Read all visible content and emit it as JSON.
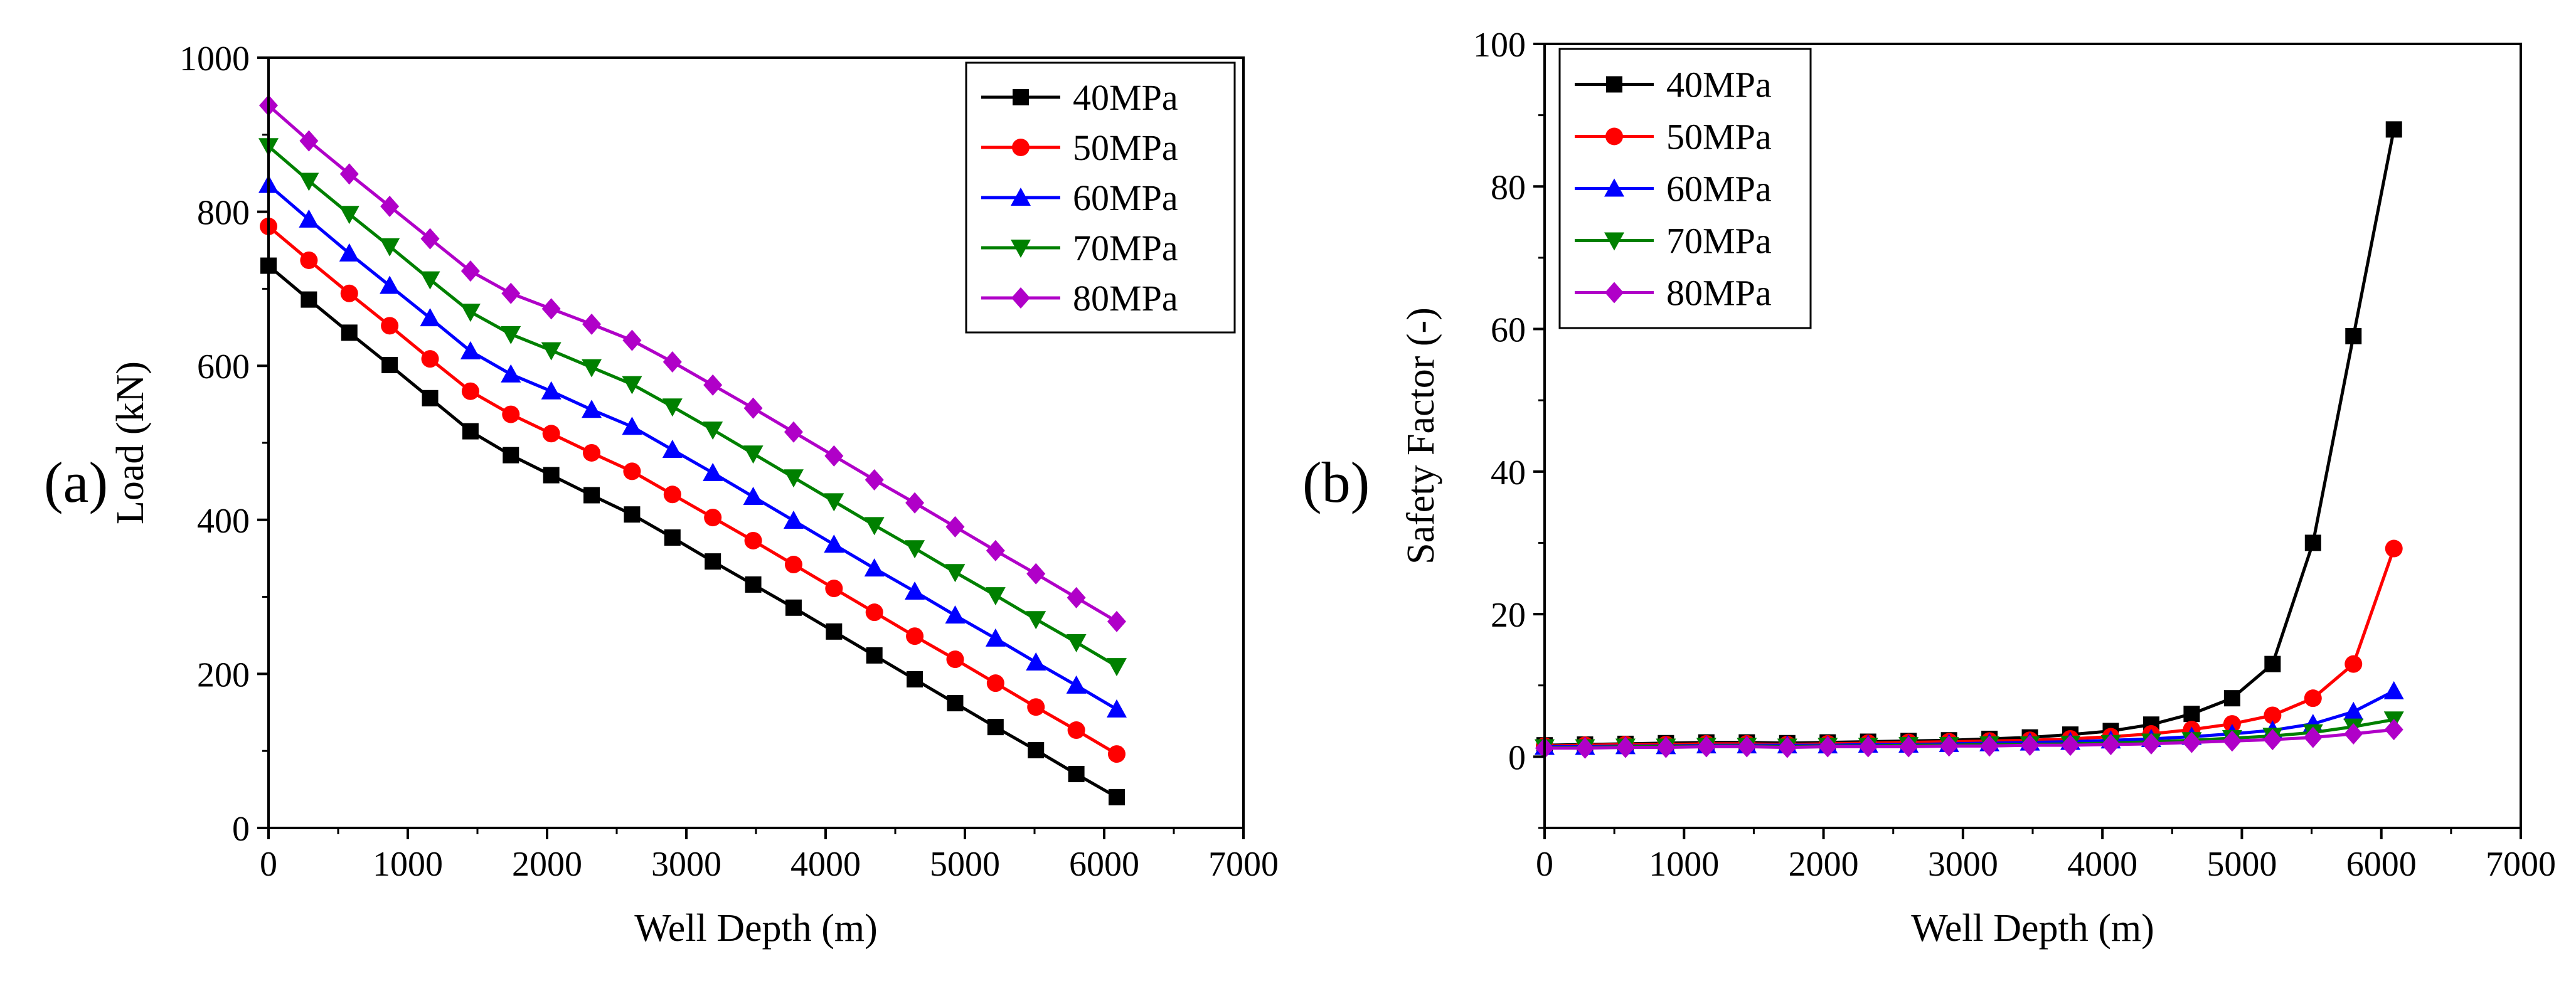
{
  "figure": {
    "panels": [
      {
        "panel_label": "(a)",
        "chart_data": {
          "type": "line",
          "xlabel": "Well Depth (m)",
          "ylabel": "Load (kN)",
          "xlim": [
            0,
            7000
          ],
          "ylim": [
            0,
            1000
          ],
          "xticks": [
            0,
            1000,
            2000,
            3000,
            4000,
            5000,
            6000,
            7000
          ],
          "yticks": [
            0,
            200,
            400,
            600,
            800,
            1000
          ],
          "legend_position": "top-right",
          "x": [
            0,
            290,
            580,
            870,
            1160,
            1450,
            1740,
            2030,
            2320,
            2610,
            2900,
            3190,
            3480,
            3770,
            4060,
            4350,
            4640,
            4930,
            5220,
            5510,
            5800,
            6090
          ],
          "series": [
            {
              "name": "40MPa",
              "color": "#000000",
              "marker": "square",
              "values": [
                730,
                686,
                643,
                601,
                558,
                515,
                484,
                458,
                432,
                407,
                377,
                346,
                316,
                286,
                255,
                224,
                193,
                162,
                131,
                101,
                70,
                40
              ]
            },
            {
              "name": "50MPa",
              "color": "#ff0000",
              "marker": "circle",
              "values": [
                781,
                737,
                694,
                652,
                609,
                567,
                537,
                512,
                487,
                463,
                433,
                403,
                373,
                342,
                311,
                280,
                249,
                219,
                188,
                157,
                127,
                96
              ]
            },
            {
              "name": "60MPa",
              "color": "#0000ff",
              "marker": "triangle-up",
              "values": [
                835,
                790,
                746,
                704,
                662,
                619,
                589,
                567,
                543,
                521,
                491,
                461,
                430,
                399,
                368,
                337,
                307,
                276,
                246,
                215,
                185,
                154
              ]
            },
            {
              "name": "70MPa",
              "color": "#008000",
              "marker": "triangle-down",
              "values": [
                885,
                840,
                797,
                755,
                712,
                670,
                641,
                620,
                598,
                576,
                547,
                517,
                486,
                455,
                424,
                393,
                363,
                332,
                302,
                271,
                241,
                210
              ]
            },
            {
              "name": "80MPa",
              "color": "#b000c8",
              "marker": "diamond",
              "values": [
                938,
                892,
                849,
                807,
                765,
                723,
                694,
                674,
                654,
                633,
                605,
                575,
                545,
                514,
                483,
                452,
                422,
                391,
                360,
                330,
                299,
                268
              ]
            }
          ]
        }
      },
      {
        "panel_label": "(b)",
        "chart_data": {
          "type": "line",
          "xlabel": "Well Depth (m)",
          "ylabel": "Safety Factor (-)",
          "xlim": [
            0,
            7000
          ],
          "ylim": [
            -10,
            100
          ],
          "xticks": [
            0,
            1000,
            2000,
            3000,
            4000,
            5000,
            6000,
            7000
          ],
          "yticks": [
            0,
            20,
            40,
            60,
            80,
            100
          ],
          "legend_position": "top-left",
          "x": [
            0,
            290,
            580,
            870,
            1160,
            1450,
            1740,
            2030,
            2320,
            2610,
            2900,
            3190,
            3480,
            3770,
            4060,
            4350,
            4640,
            4930,
            5220,
            5510,
            5800,
            6090
          ],
          "series": [
            {
              "name": "40MPa",
              "color": "#000000",
              "marker": "square",
              "values": [
                1.6,
                1.7,
                1.8,
                1.9,
                2.0,
                2.0,
                1.9,
                2.0,
                2.1,
                2.2,
                2.3,
                2.5,
                2.7,
                3.1,
                3.6,
                4.5,
                6.0,
                8.2,
                13.0,
                30.0,
                59.0,
                88.0
              ]
            },
            {
              "name": "50MPa",
              "color": "#ff0000",
              "marker": "circle",
              "values": [
                1.5,
                1.6,
                1.7,
                1.7,
                1.8,
                1.8,
                1.7,
                1.8,
                1.9,
                2.0,
                2.1,
                2.2,
                2.3,
                2.5,
                2.8,
                3.2,
                3.8,
                4.6,
                5.8,
                8.2,
                13.0,
                29.2
              ]
            },
            {
              "name": "60MPa",
              "color": "#0000ff",
              "marker": "triangle-up",
              "values": [
                1.4,
                1.4,
                1.5,
                1.5,
                1.6,
                1.6,
                1.6,
                1.6,
                1.7,
                1.7,
                1.8,
                1.9,
                2.0,
                2.1,
                2.3,
                2.5,
                2.8,
                3.2,
                3.7,
                4.6,
                6.3,
                9.2
              ]
            },
            {
              "name": "70MPa",
              "color": "#008000",
              "marker": "triangle-down",
              "values": [
                1.3,
                1.3,
                1.4,
                1.4,
                1.5,
                1.5,
                1.4,
                1.5,
                1.5,
                1.6,
                1.6,
                1.7,
                1.7,
                1.8,
                1.9,
                2.1,
                2.3,
                2.6,
                2.9,
                3.4,
                4.2,
                5.2
              ]
            },
            {
              "name": "80MPa",
              "color": "#b000c8",
              "marker": "diamond",
              "values": [
                1.2,
                1.2,
                1.3,
                1.3,
                1.4,
                1.4,
                1.3,
                1.4,
                1.4,
                1.4,
                1.5,
                1.5,
                1.6,
                1.6,
                1.7,
                1.8,
                2.0,
                2.2,
                2.4,
                2.7,
                3.2,
                3.8
              ]
            }
          ]
        }
      }
    ]
  }
}
